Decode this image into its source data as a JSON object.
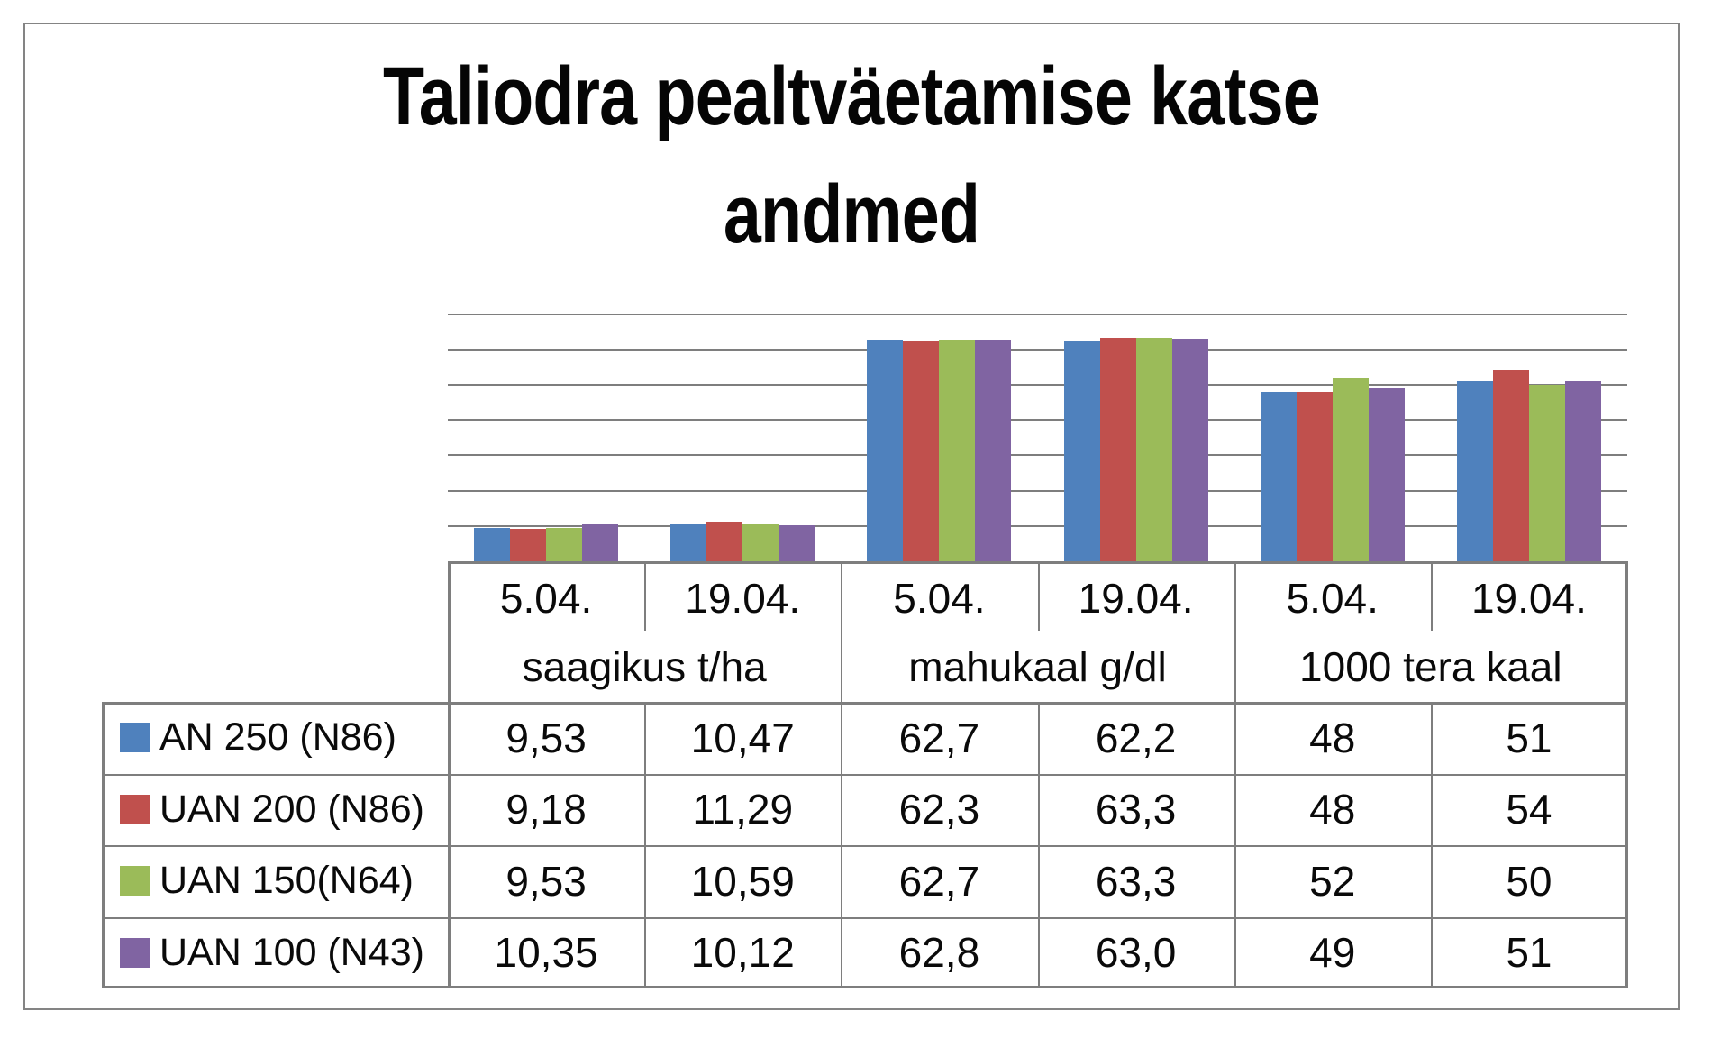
{
  "title": {
    "line1": "Taliodra pealtväetamise katse",
    "line2": "andmed"
  },
  "chart_data": {
    "type": "bar",
    "title": "Taliodra pealtväetamise katse andmed",
    "xlabel": "",
    "ylabel": "",
    "ylim": [
      0,
      70
    ],
    "gridline_step": 10,
    "grid": true,
    "axis_tick_labels_visible": false,
    "legend_position": "data-table-left-column",
    "groups": [
      {
        "category": "saagikus t/ha",
        "dates": [
          "5.04.",
          "19.04."
        ]
      },
      {
        "category": "mahukaal g/dl",
        "dates": [
          "5.04.",
          "19.04."
        ]
      },
      {
        "category": "1000 tera kaal",
        "dates": [
          "5.04.",
          "19.04."
        ]
      }
    ],
    "columns": [
      "5.04.",
      "19.04.",
      "5.04.",
      "19.04.",
      "5.04.",
      "19.04."
    ],
    "series": [
      {
        "name": "AN 250 (N86)",
        "color": "#4F81BD",
        "values": [
          9.53,
          10.47,
          62.7,
          62.2,
          48,
          51
        ],
        "display": [
          "9,53",
          "10,47",
          "62,7",
          "62,2",
          "48",
          "51"
        ]
      },
      {
        "name": "UAN 200 (N86)",
        "color": "#C0504D",
        "values": [
          9.18,
          11.29,
          62.3,
          63.3,
          48,
          54
        ],
        "display": [
          "9,18",
          "11,29",
          "62,3",
          "63,3",
          "48",
          "54"
        ]
      },
      {
        "name": "UAN 150(N64)",
        "color": "#9BBB59",
        "values": [
          9.53,
          10.59,
          62.7,
          63.3,
          52,
          50
        ],
        "display": [
          "9,53",
          "10,59",
          "62,7",
          "63,3",
          "52",
          "50"
        ]
      },
      {
        "name": "UAN 100 (N43)",
        "color": "#8064A2",
        "values": [
          10.35,
          10.12,
          62.8,
          63.0,
          49,
          51
        ],
        "display": [
          "10,35",
          "10,12",
          "62,8",
          "63,0",
          "49",
          "51"
        ]
      }
    ]
  },
  "colors": {
    "grid": "#7E7E7E",
    "table_border": "#7E7E7E",
    "frame_border": "#848484",
    "text": "#000000",
    "background": "#FFFFFF"
  }
}
